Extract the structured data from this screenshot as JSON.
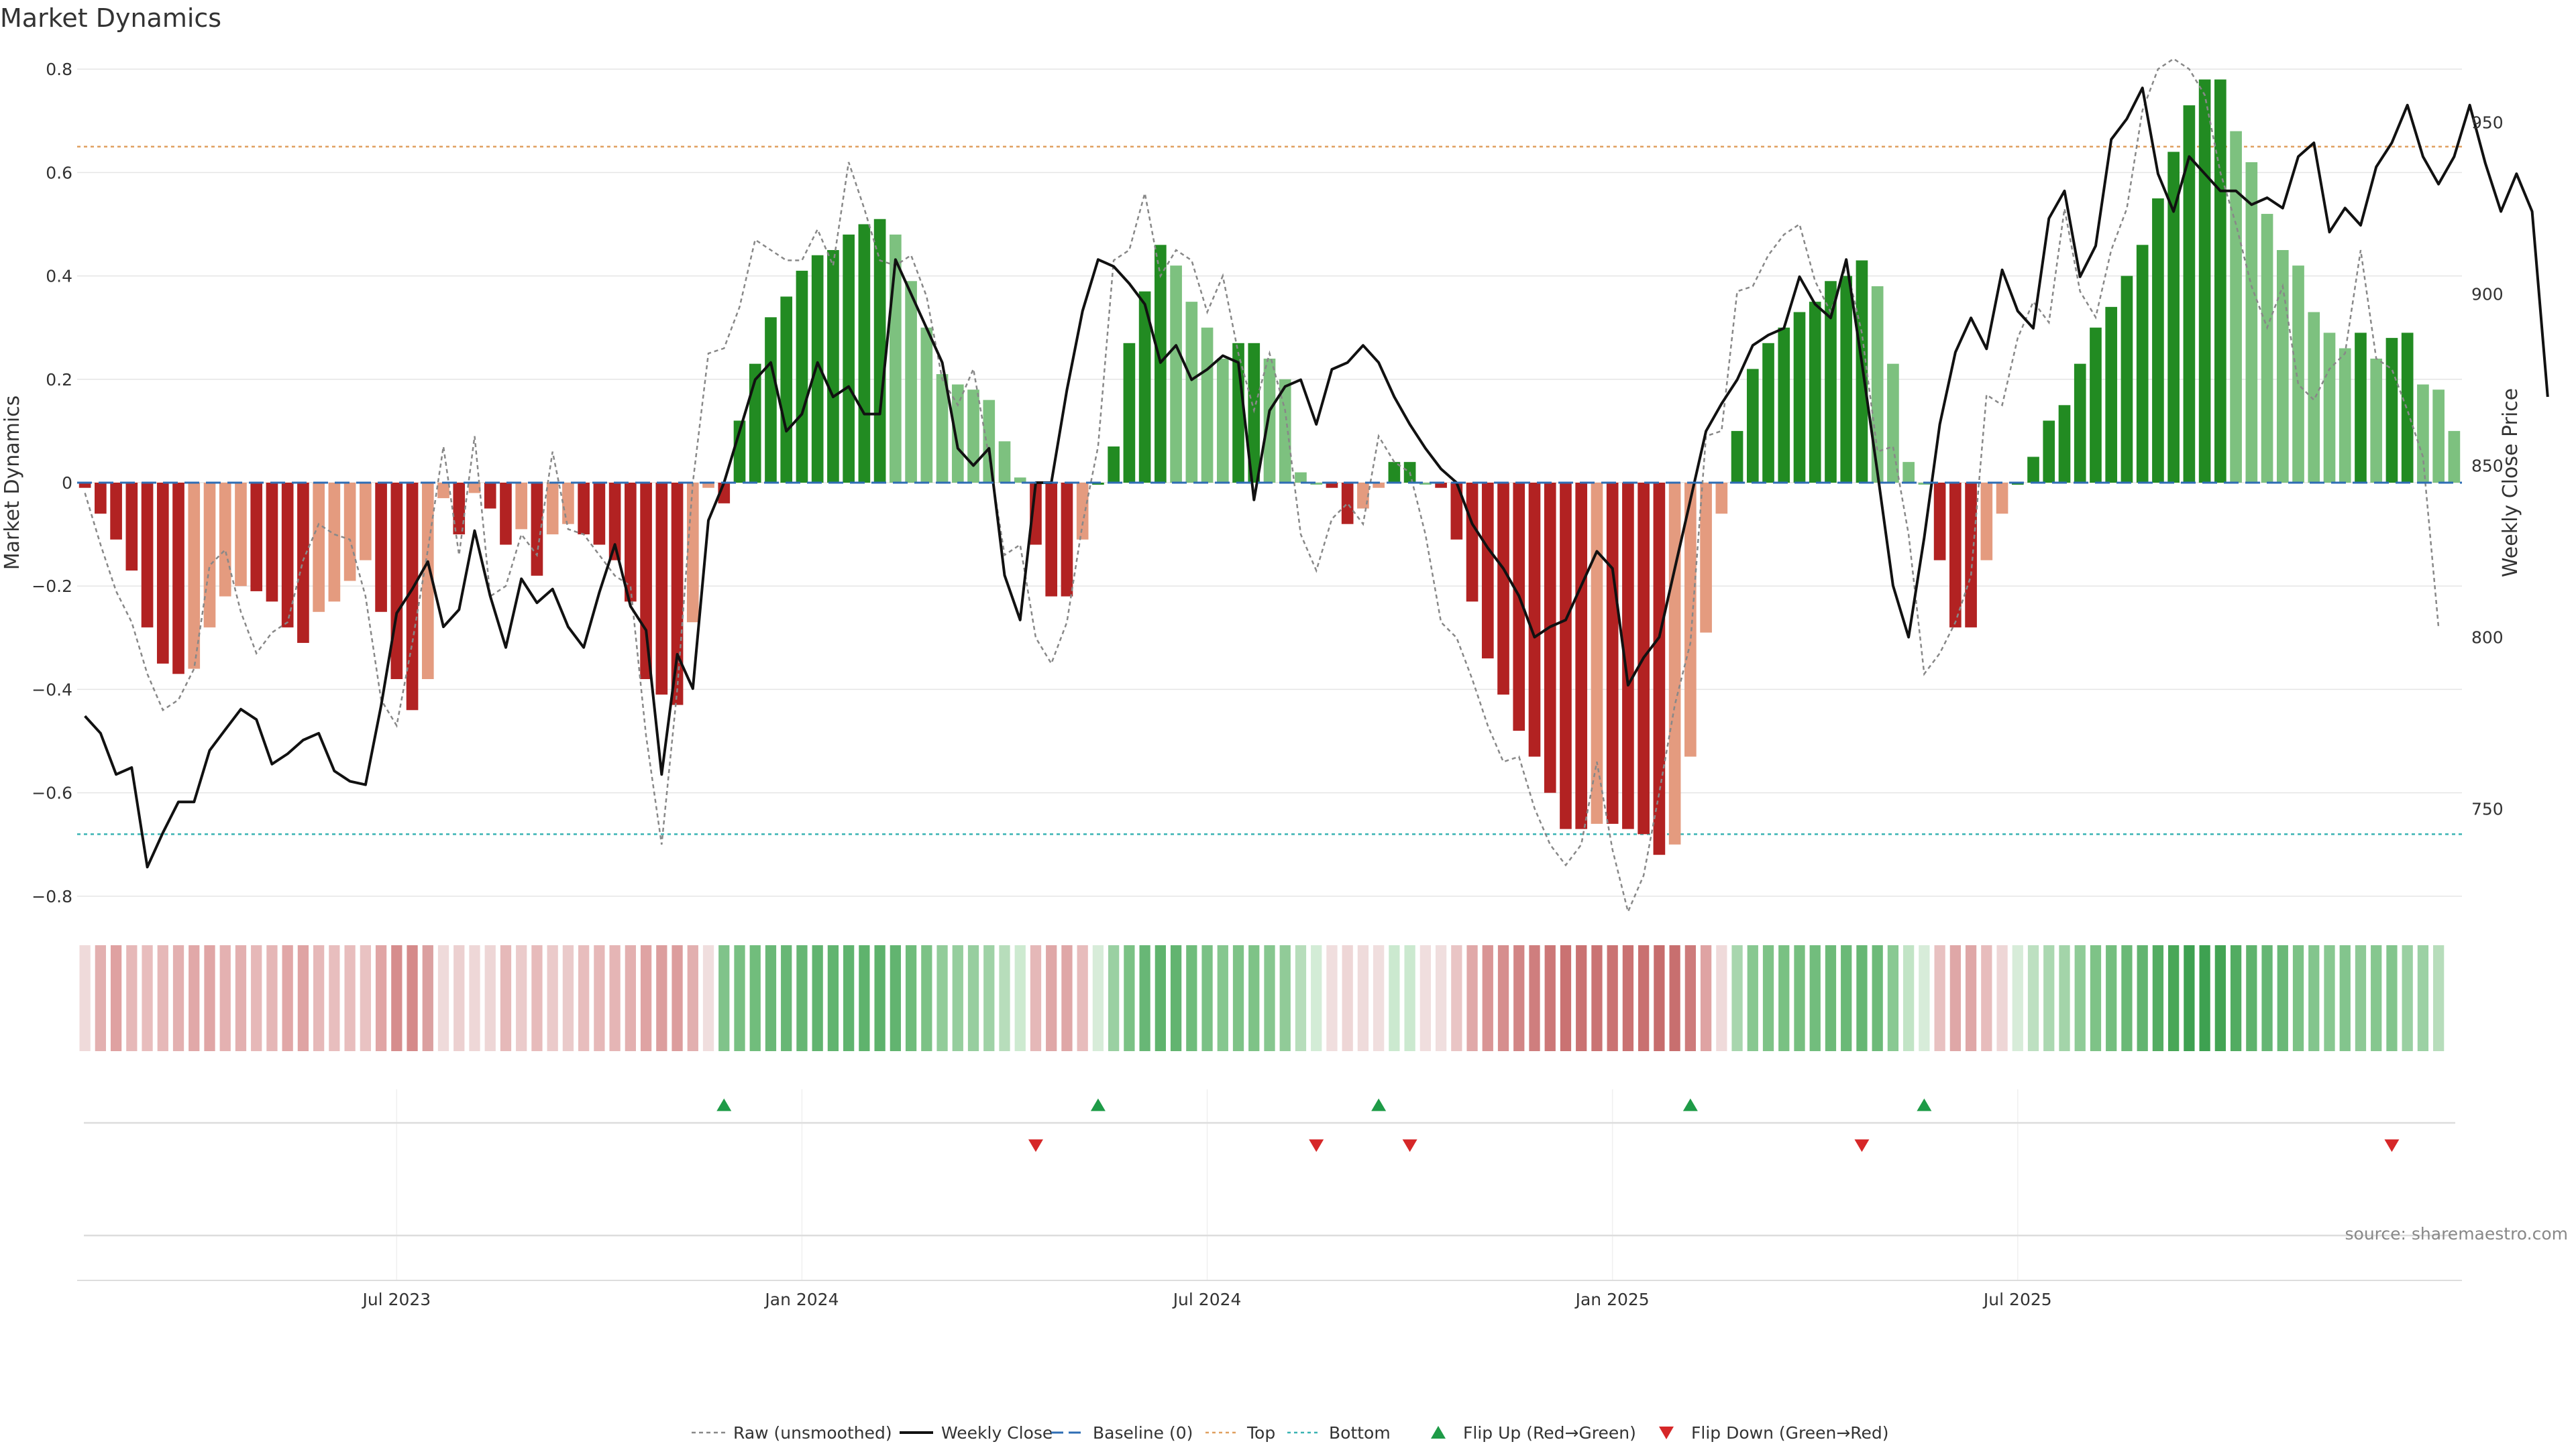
{
  "chart_data": {
    "type": "bar",
    "title": "Market Dynamics",
    "source": "source: sharemaestro.com",
    "ylabel_left": "Market Dynamics",
    "ylabel_right": "Weekly Close Price",
    "ylim_left": [
      -0.83,
      0.83
    ],
    "ylim_right": [
      720,
      970
    ],
    "yticks_left": [
      -0.8,
      -0.6,
      -0.4,
      -0.2,
      0,
      0.2,
      0.4,
      0.6,
      0.8
    ],
    "yticks_left_labels": [
      "−0.8",
      "−0.6",
      "−0.4",
      "−0.2",
      "0",
      "0.2",
      "0.4",
      "0.6",
      "0.8"
    ],
    "yticks_right": [
      750,
      800,
      850,
      900,
      950
    ],
    "yticks_right_labels": [
      "750",
      "800",
      "850",
      "900",
      "950"
    ],
    "xticks": [
      {
        "index": 20,
        "label": "Jul 2023"
      },
      {
        "index": 46,
        "label": "Jan 2024"
      },
      {
        "index": 72,
        "label": "Jul 2024"
      },
      {
        "index": 98,
        "label": "Jan 2025"
      },
      {
        "index": 124,
        "label": "Jul 2025"
      }
    ],
    "top_level": 0.65,
    "bottom_level": -0.68,
    "baseline": 0,
    "bars": [
      -0.01,
      -0.06,
      -0.11,
      -0.17,
      -0.28,
      -0.35,
      -0.37,
      -0.36,
      -0.28,
      -0.22,
      -0.2,
      -0.21,
      -0.23,
      -0.28,
      -0.31,
      -0.25,
      -0.23,
      -0.19,
      -0.15,
      -0.25,
      -0.38,
      -0.44,
      -0.38,
      -0.03,
      -0.1,
      -0.02,
      -0.05,
      -0.12,
      -0.09,
      -0.18,
      -0.1,
      -0.08,
      -0.1,
      -0.12,
      -0.15,
      -0.23,
      -0.38,
      -0.41,
      -0.43,
      -0.27,
      -0.01,
      -0.04,
      0.12,
      0.23,
      0.32,
      0.36,
      0.41,
      0.44,
      0.45,
      0.48,
      0.5,
      0.51,
      0.48,
      0.39,
      0.3,
      0.21,
      0.19,
      0.18,
      0.16,
      0.08,
      0.01,
      -0.12,
      -0.22,
      -0.22,
      -0.11,
      0,
      0.07,
      0.27,
      0.37,
      0.46,
      0.42,
      0.35,
      0.3,
      0.24,
      0.27,
      0.27,
      0.24,
      0.2,
      0.02,
      0,
      -0.01,
      -0.08,
      -0.05,
      -0.01,
      0.04,
      0.04,
      0,
      -0.01,
      -0.11,
      -0.23,
      -0.34,
      -0.41,
      -0.48,
      -0.53,
      -0.6,
      -0.67,
      -0.67,
      -0.66,
      -0.66,
      -0.67,
      -0.68,
      -0.72,
      -0.7,
      -0.53,
      -0.29,
      -0.06,
      0.1,
      0.22,
      0.27,
      0.3,
      0.33,
      0.35,
      0.39,
      0.4,
      0.43,
      0.38,
      0.23,
      0.04,
      0,
      -0.15,
      -0.28,
      -0.28,
      -0.15,
      -0.06,
      0,
      0.05,
      0.12,
      0.15,
      0.23,
      0.3,
      0.34,
      0.4,
      0.46,
      0.55,
      0.64,
      0.73,
      0.78,
      0.78,
      0.68,
      0.62,
      0.52,
      0.45,
      0.42,
      0.33,
      0.29,
      0.26,
      0.29,
      0.24,
      0.28,
      0.29,
      0.19,
      0.18,
      0.1
    ],
    "series": [
      {
        "name": "Raw (unsmoothed)",
        "values": [
          -0.02,
          -0.12,
          -0.21,
          -0.27,
          -0.37,
          -0.44,
          -0.42,
          -0.36,
          -0.16,
          -0.13,
          -0.25,
          -0.33,
          -0.29,
          -0.27,
          -0.15,
          -0.08,
          -0.1,
          -0.11,
          -0.22,
          -0.42,
          -0.47,
          -0.31,
          -0.13,
          0.07,
          -0.14,
          0.09,
          -0.22,
          -0.2,
          -0.1,
          -0.14,
          0.06,
          -0.09,
          -0.1,
          -0.14,
          -0.18,
          -0.2,
          -0.49,
          -0.7,
          -0.4,
          0,
          0.25,
          0.26,
          0.34,
          0.47,
          0.45,
          0.43,
          0.43,
          0.49,
          0.42,
          0.62,
          0.53,
          0.43,
          0.42,
          0.44,
          0.36,
          0.2,
          0.15,
          0.22,
          0.05,
          -0.14,
          -0.12,
          -0.3,
          -0.35,
          -0.27,
          -0.08,
          0.07,
          0.43,
          0.45,
          0.56,
          0.4,
          0.45,
          0.43,
          0.33,
          0.4,
          0.25,
          0.14,
          0.25,
          0.14,
          -0.1,
          -0.17,
          -0.07,
          -0.04,
          -0.08,
          0.09,
          0.04,
          0.02,
          -0.1,
          -0.27,
          -0.3,
          -0.38,
          -0.47,
          -0.54,
          -0.53,
          -0.63,
          -0.7,
          -0.74,
          -0.7,
          -0.54,
          -0.71,
          -0.83,
          -0.76,
          -0.6,
          -0.43,
          -0.31,
          0.09,
          0.1,
          0.37,
          0.38,
          0.44,
          0.48,
          0.5,
          0.39,
          0.33,
          0.42,
          0.29,
          0.06,
          0.07,
          -0.1,
          -0.37,
          -0.33,
          -0.27,
          -0.18,
          0.17,
          0.15,
          0.28,
          0.35,
          0.31,
          0.53,
          0.37,
          0.32,
          0.45,
          0.53,
          0.72,
          0.8,
          0.82,
          0.8,
          0.75,
          0.6,
          0.5,
          0.38,
          0.3,
          0.38,
          0.19,
          0.16,
          0.22,
          0.25,
          0.45,
          0.24,
          0.22,
          0.14,
          0.05,
          -0.28
        ]
      },
      {
        "name": "Weekly Close",
        "values": [
          777,
          772,
          760,
          762,
          733,
          743,
          752,
          752,
          767,
          773,
          779,
          776,
          763,
          766,
          770,
          772,
          761,
          758,
          757,
          780,
          807,
          814,
          822,
          803,
          808,
          831,
          812,
          797,
          817,
          810,
          814,
          803,
          797,
          813,
          827,
          809,
          802,
          760,
          795,
          785,
          834,
          845,
          860,
          875,
          880,
          860,
          865,
          880,
          870,
          873,
          865,
          865,
          910,
          900,
          890,
          880,
          855,
          850,
          855,
          818,
          805,
          845,
          845,
          872,
          895,
          910,
          908,
          903,
          897,
          880,
          885,
          875,
          878,
          882,
          880,
          840,
          866,
          873,
          875,
          862,
          878,
          880,
          885,
          880,
          870,
          862,
          855,
          849,
          845,
          833,
          826,
          820,
          812,
          800,
          803,
          805,
          815,
          825,
          820,
          786,
          794,
          800,
          820,
          840,
          860,
          868,
          875,
          885,
          888,
          890,
          905,
          897,
          893,
          910,
          880,
          848,
          815,
          800,
          829,
          862,
          883,
          893,
          884,
          907,
          895,
          890,
          922,
          930,
          905,
          914,
          945,
          951,
          960,
          935,
          924,
          940,
          935,
          930,
          930,
          926,
          928,
          925,
          940,
          944,
          918,
          925,
          920,
          937,
          944,
          955,
          940,
          932,
          940,
          955,
          938,
          924,
          935,
          924,
          870
        ]
      }
    ],
    "strip_colors": [
      "#efdada",
      "#e3b0b0",
      "#dfa1a1",
      "#e6b8b8",
      "#e8bdbd",
      "#e6b8b8",
      "#e3b0b0",
      "#e1a8a8",
      "#e0a5a5",
      "#e4b1b1",
      "#e3afaf",
      "#e6b8b8",
      "#e5b6b6",
      "#e1a7a7",
      "#dfa3a3",
      "#e6b8b8",
      "#e8bebe",
      "#e8bdbd",
      "#e9c2c2",
      "#e0a5a5",
      "#d68d8d",
      "#d58a8a",
      "#dba0a0",
      "#efdada",
      "#ecd0d0",
      "#eed7d7",
      "#eed6d6",
      "#e6b9b9",
      "#ebcbcb",
      "#e7bbbb",
      "#ebcaca",
      "#eacaca",
      "#e8bdbd",
      "#e6b8b8",
      "#e5b5b5",
      "#e3b0b0",
      "#dfa3a3",
      "#dc9e9e",
      "#dc9d9d",
      "#e2afaf",
      "#f0dede",
      "#80c38a",
      "#78c083",
      "#71bd7c",
      "#6ab877",
      "#68b775",
      "#66b674",
      "#62b470",
      "#62b470",
      "#60b46f",
      "#5fb36d",
      "#5db26c",
      "#62b470",
      "#6fbc7b",
      "#7cc286",
      "#92cc9a",
      "#96ce9e",
      "#97ce9f",
      "#9fd2a6",
      "#b7ddbb",
      "#cdead0",
      "#e5b8b8",
      "#dfa7a7",
      "#dfa7a7",
      "#e7bcbc",
      "#d7ecd9",
      "#9ad0a2",
      "#7bc285",
      "#68b776",
      "#5fb36d",
      "#62b470",
      "#6fbc7b",
      "#7ac185",
      "#86c78f",
      "#7ec387",
      "#7ec387",
      "#86c78f",
      "#91cb98",
      "#b7ddbb",
      "#d3ecd6",
      "#f0dede",
      "#eed6d6",
      "#efdbdb",
      "#f0dede",
      "#cbe9cf",
      "#cbe9cf",
      "#f0dede",
      "#f0dede",
      "#e9c5c5",
      "#e0a8a8",
      "#d99595",
      "#d68e8e",
      "#d28585",
      "#cf7e7e",
      "#cc7777",
      "#ca7272",
      "#ca7272",
      "#ca7373",
      "#ca7373",
      "#ca7272",
      "#c97171",
      "#c76d6d",
      "#c86f6f",
      "#cd7b7b",
      "#dfa3a3",
      "#efdada",
      "#a8d6ae",
      "#88c891",
      "#7ec387",
      "#79c183",
      "#76bf80",
      "#72bd7d",
      "#6dba79",
      "#6bb977",
      "#67b774",
      "#6dba79",
      "#89c992",
      "#c2e4c6",
      "#d7ecd9",
      "#e8c1c1",
      "#dfa7a7",
      "#dfa7a7",
      "#e7bcbc",
      "#eed6d6",
      "#d7ecd9",
      "#bde0c1",
      "#abd8b1",
      "#a3d4a9",
      "#8fcb97",
      "#7ec387",
      "#74be7e",
      "#6bb977",
      "#62b470",
      "#54ad62",
      "#48a757",
      "#3ea151",
      "#3ea151",
      "#43a454",
      "#52ac61",
      "#5fb36d",
      "#66b674",
      "#6ab877",
      "#7cc286",
      "#83c58d",
      "#88c891",
      "#83c58d",
      "#8ec996",
      "#86c78f",
      "#83c58d",
      "#9ad0a2",
      "#9cd1a4",
      "#b7ddbb"
    ],
    "flip_up": [
      41,
      65,
      83,
      103,
      118
    ],
    "flip_down": [
      61,
      79,
      85,
      114,
      148
    ],
    "colors": {
      "strong_pos": "#228b22",
      "weak_pos": "#7dc17f",
      "strong_neg": "#b22222",
      "weak_neg": "#e49b7f",
      "price_line": "#111111",
      "raw_line": "#888888",
      "baseline": "#2e6db4",
      "top": "#e0a060",
      "bottom": "#3ab3b3",
      "flip_up": "#1e9b47",
      "flip_down": "#d62728",
      "grid": "#e5e5e5"
    },
    "legend": [
      {
        "label": "Raw (unsmoothed)",
        "kind": "raw"
      },
      {
        "label": "Weekly Close",
        "kind": "price"
      },
      {
        "label": "Baseline (0)",
        "kind": "baseline"
      },
      {
        "label": "Top",
        "kind": "top"
      },
      {
        "label": "Bottom",
        "kind": "bottom"
      },
      {
        "label": "Flip Up (Red→Green)",
        "kind": "up"
      },
      {
        "label": "Flip Down (Green→Red)",
        "kind": "down"
      }
    ],
    "legend_position": "bottom-center",
    "grid": true
  }
}
